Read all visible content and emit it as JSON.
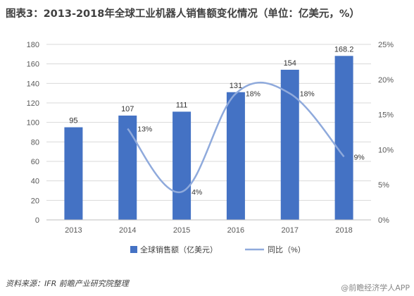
{
  "title": "图表3：2013-2018年全球工业机器人销售额变化情况（单位：亿美元，%）",
  "source": "资料来源：IFR 前瞻产业研究院整理",
  "watermark_corner": "@前瞻经济学人APP",
  "colors": {
    "bar": "#4472C4",
    "line": "#8FAADC",
    "grid": "#D9D9D9",
    "axis_text": "#595959"
  },
  "chart_data": {
    "type": "bar",
    "categories": [
      "2013",
      "2014",
      "2015",
      "2016",
      "2017",
      "2018"
    ],
    "series": [
      {
        "name": "全球销售额（亿美元）",
        "type": "bar",
        "axis": "left",
        "values": [
          95,
          107,
          111,
          131,
          154,
          168.2
        ],
        "labels": [
          "95",
          "107",
          "111",
          "131",
          "154",
          "168.2"
        ]
      },
      {
        "name": "同比（%）",
        "type": "line",
        "axis": "right",
        "values": [
          null,
          13,
          4,
          18,
          18,
          9
        ],
        "labels": [
          "",
          "13%",
          "4%",
          "18%",
          "18%",
          "9%"
        ]
      }
    ],
    "y_left": {
      "min": 0,
      "max": 180,
      "ticks": [
        "0",
        "20",
        "40",
        "60",
        "80",
        "100",
        "120",
        "140",
        "160",
        "180"
      ]
    },
    "y_right": {
      "min": 0,
      "max": 25,
      "ticks": [
        "0%",
        "5%",
        "10%",
        "15%",
        "20%",
        "25%"
      ]
    },
    "grid": true,
    "legend": "bottom"
  }
}
